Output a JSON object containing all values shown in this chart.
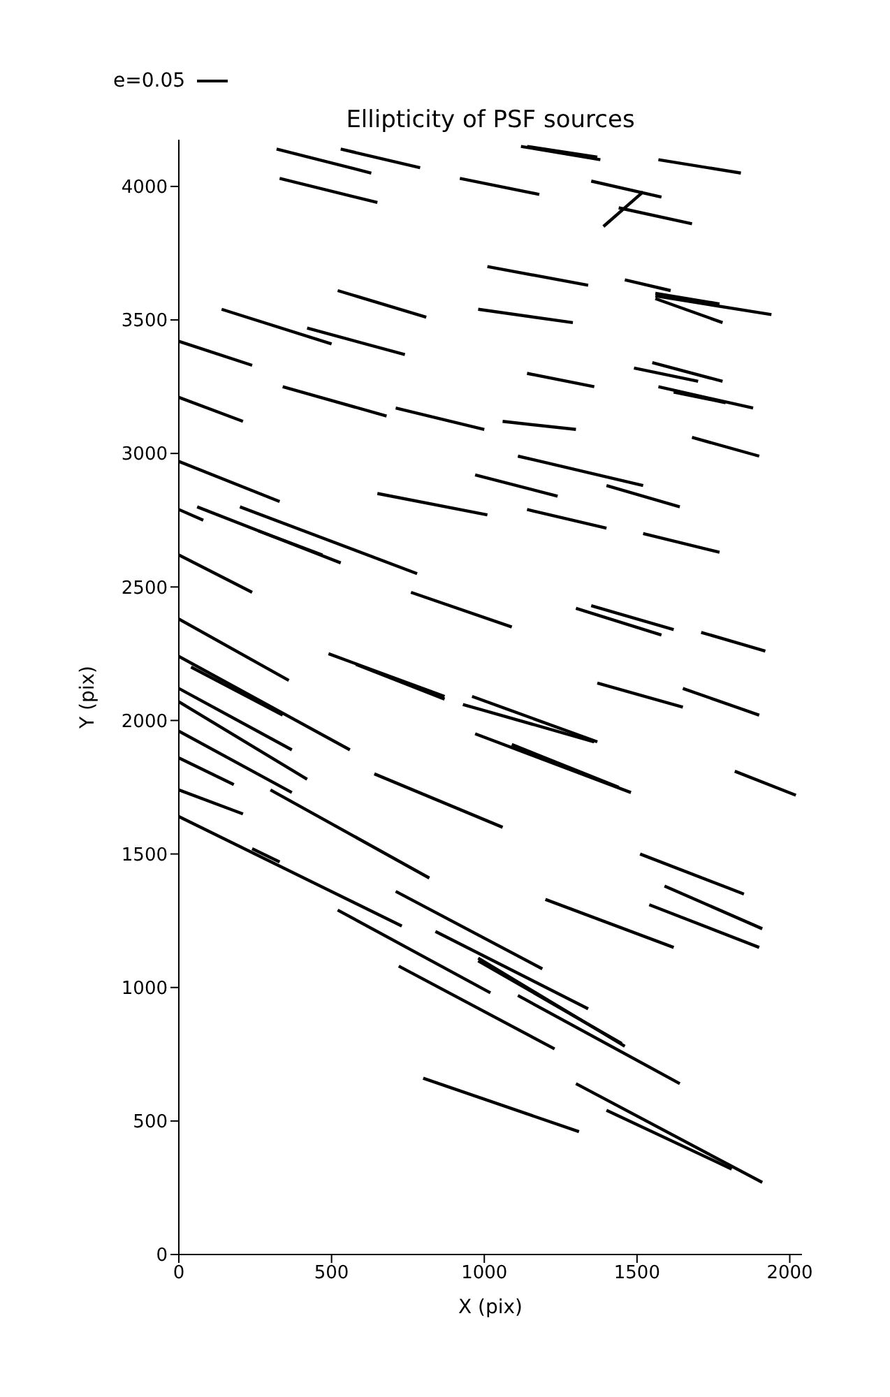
{
  "chart_data": {
    "type": "line",
    "title": "Ellipticity of PSF sources",
    "xlabel": "X (pix)",
    "ylabel": "Y (pix)",
    "annotations": [
      "e=0.05"
    ],
    "xlim": [
      0,
      2040
    ],
    "ylim": [
      0,
      4175
    ],
    "xticks": [
      0,
      500,
      1000,
      1500,
      2000
    ],
    "yticks": [
      0,
      500,
      1000,
      1500,
      2000,
      2500,
      3000,
      3500,
      4000
    ],
    "marker": "none",
    "line_style": "solid",
    "series": [
      {
        "color": "#000000",
        "x": [
          320,
          630
        ],
        "values": [
          4140,
          4050
        ]
      },
      {
        "color": "#000000",
        "x": [
          530,
          790
        ],
        "values": [
          4140,
          4070
        ]
      },
      {
        "color": "#000000",
        "x": [
          330,
          650
        ],
        "values": [
          4030,
          3940
        ]
      },
      {
        "color": "#000000",
        "x": [
          920,
          1180
        ],
        "values": [
          4030,
          3970
        ]
      },
      {
        "color": "#000000",
        "x": [
          1120,
          1380
        ],
        "values": [
          4150,
          4100
        ]
      },
      {
        "color": "#000000",
        "x": [
          1140,
          1370
        ],
        "values": [
          4150,
          4110
        ]
      },
      {
        "color": "#000000",
        "x": [
          1570,
          1840
        ],
        "values": [
          4100,
          4050
        ]
      },
      {
        "color": "#000000",
        "x": [
          1350,
          1580
        ],
        "values": [
          4020,
          3960
        ]
      },
      {
        "color": "#000000",
        "x": [
          1390,
          1520
        ],
        "values": [
          3850,
          3980
        ]
      },
      {
        "color": "#000000",
        "x": [
          1440,
          1680
        ],
        "values": [
          3920,
          3860
        ]
      },
      {
        "color": "#000000",
        "x": [
          1010,
          1340
        ],
        "values": [
          3700,
          3630
        ]
      },
      {
        "color": "#000000",
        "x": [
          1460,
          1610
        ],
        "values": [
          3650,
          3610
        ]
      },
      {
        "color": "#000000",
        "x": [
          1560,
          1770
        ],
        "values": [
          3600,
          3560
        ]
      },
      {
        "color": "#000000",
        "x": [
          1560,
          1940
        ],
        "values": [
          3590,
          3520
        ]
      },
      {
        "color": "#000000",
        "x": [
          1560,
          1780
        ],
        "values": [
          3580,
          3490
        ]
      },
      {
        "color": "#000000",
        "x": [
          520,
          810
        ],
        "values": [
          3610,
          3510
        ]
      },
      {
        "color": "#000000",
        "x": [
          980,
          1290
        ],
        "values": [
          3540,
          3490
        ]
      },
      {
        "color": "#000000",
        "x": [
          140,
          500
        ],
        "values": [
          3540,
          3410
        ]
      },
      {
        "color": "#000000",
        "x": [
          420,
          740
        ],
        "values": [
          3470,
          3370
        ]
      },
      {
        "color": "#000000",
        "x": [
          0,
          240
        ],
        "values": [
          3420,
          3330
        ]
      },
      {
        "color": "#000000",
        "x": [
          1140,
          1360
        ],
        "values": [
          3300,
          3250
        ]
      },
      {
        "color": "#000000",
        "x": [
          1490,
          1700
        ],
        "values": [
          3320,
          3270
        ]
      },
      {
        "color": "#000000",
        "x": [
          1550,
          1780
        ],
        "values": [
          3340,
          3270
        ]
      },
      {
        "color": "#000000",
        "x": [
          1570,
          1880
        ],
        "values": [
          3250,
          3170
        ]
      },
      {
        "color": "#000000",
        "x": [
          1620,
          1790
        ],
        "values": [
          3230,
          3190
        ]
      },
      {
        "color": "#000000",
        "x": [
          340,
          680
        ],
        "values": [
          3250,
          3140
        ]
      },
      {
        "color": "#000000",
        "x": [
          0,
          210
        ],
        "values": [
          3210,
          3120
        ]
      },
      {
        "color": "#000000",
        "x": [
          710,
          1000
        ],
        "values": [
          3170,
          3090
        ]
      },
      {
        "color": "#000000",
        "x": [
          1060,
          1300
        ],
        "values": [
          3120,
          3090
        ]
      },
      {
        "color": "#000000",
        "x": [
          1680,
          1900
        ],
        "values": [
          3060,
          2990
        ]
      },
      {
        "color": "#000000",
        "x": [
          0,
          330
        ],
        "values": [
          2970,
          2820
        ]
      },
      {
        "color": "#000000",
        "x": [
          1110,
          1520
        ],
        "values": [
          2990,
          2880
        ]
      },
      {
        "color": "#000000",
        "x": [
          970,
          1240
        ],
        "values": [
          2920,
          2840
        ]
      },
      {
        "color": "#000000",
        "x": [
          1400,
          1640
        ],
        "values": [
          2880,
          2800
        ]
      },
      {
        "color": "#000000",
        "x": [
          650,
          1010
        ],
        "values": [
          2850,
          2770
        ]
      },
      {
        "color": "#000000",
        "x": [
          1140,
          1400
        ],
        "values": [
          2790,
          2720
        ]
      },
      {
        "color": "#000000",
        "x": [
          1520,
          1770
        ],
        "values": [
          2700,
          2630
        ]
      },
      {
        "color": "#000000",
        "x": [
          0,
          80
        ],
        "values": [
          2790,
          2750
        ]
      },
      {
        "color": "#000000",
        "x": [
          60,
          530
        ],
        "values": [
          2800,
          2590
        ]
      },
      {
        "color": "#000000",
        "x": [
          200,
          780
        ],
        "values": [
          2800,
          2550
        ]
      },
      {
        "color": "#000000",
        "x": [
          260,
          470
        ],
        "values": [
          2710,
          2620
        ]
      },
      {
        "color": "#000000",
        "x": [
          0,
          240
        ],
        "values": [
          2620,
          2480
        ]
      },
      {
        "color": "#000000",
        "x": [
          760,
          1090
        ],
        "values": [
          2480,
          2350
        ]
      },
      {
        "color": "#000000",
        "x": [
          1300,
          1580
        ],
        "values": [
          2420,
          2320
        ]
      },
      {
        "color": "#000000",
        "x": [
          1350,
          1620
        ],
        "values": [
          2430,
          2340
        ]
      },
      {
        "color": "#000000",
        "x": [
          1710,
          1920
        ],
        "values": [
          2330,
          2260
        ]
      },
      {
        "color": "#000000",
        "x": [
          0,
          360
        ],
        "values": [
          2380,
          2150
        ]
      },
      {
        "color": "#000000",
        "x": [
          490,
          870
        ],
        "values": [
          2250,
          2090
        ]
      },
      {
        "color": "#000000",
        "x": [
          580,
          870
        ],
        "values": [
          2210,
          2080
        ]
      },
      {
        "color": "#000000",
        "x": [
          1370,
          1650
        ],
        "values": [
          2140,
          2050
        ]
      },
      {
        "color": "#000000",
        "x": [
          1650,
          1900
        ],
        "values": [
          2120,
          2020
        ]
      },
      {
        "color": "#000000",
        "x": [
          960,
          1370
        ],
        "values": [
          2090,
          1920
        ]
      },
      {
        "color": "#000000",
        "x": [
          930,
          1360
        ],
        "values": [
          2060,
          1920
        ]
      },
      {
        "color": "#000000",
        "x": [
          970,
          1480
        ],
        "values": [
          1950,
          1730
        ]
      },
      {
        "color": "#000000",
        "x": [
          1090,
          1440
        ],
        "values": [
          1910,
          1750
        ]
      },
      {
        "color": "#000000",
        "x": [
          1820,
          2020
        ],
        "values": [
          1810,
          1720
        ]
      },
      {
        "color": "#000000",
        "x": [
          640,
          1060
        ],
        "values": [
          1800,
          1600
        ]
      },
      {
        "color": "#000000",
        "x": [
          0,
          560
        ],
        "values": [
          2240,
          1890
        ]
      },
      {
        "color": "#000000",
        "x": [
          40,
          340
        ],
        "values": [
          2200,
          2020
        ]
      },
      {
        "color": "#000000",
        "x": [
          0,
          370
        ],
        "values": [
          2120,
          1890
        ]
      },
      {
        "color": "#000000",
        "x": [
          0,
          420
        ],
        "values": [
          2070,
          1780
        ]
      },
      {
        "color": "#000000",
        "x": [
          0,
          370
        ],
        "values": [
          1960,
          1730
        ]
      },
      {
        "color": "#000000",
        "x": [
          0,
          180
        ],
        "values": [
          1860,
          1760
        ]
      },
      {
        "color": "#000000",
        "x": [
          0,
          210
        ],
        "values": [
          1740,
          1650
        ]
      },
      {
        "color": "#000000",
        "x": [
          0,
          730
        ],
        "values": [
          1640,
          1230
        ]
      },
      {
        "color": "#000000",
        "x": [
          240,
          330
        ],
        "values": [
          1520,
          1470
        ]
      },
      {
        "color": "#000000",
        "x": [
          300,
          820
        ],
        "values": [
          1740,
          1410
        ]
      },
      {
        "color": "#000000",
        "x": [
          710,
          1190
        ],
        "values": [
          1360,
          1070
        ]
      },
      {
        "color": "#000000",
        "x": [
          520,
          1020
        ],
        "values": [
          1290,
          980
        ]
      },
      {
        "color": "#000000",
        "x": [
          720,
          1230
        ],
        "values": [
          1080,
          770
        ]
      },
      {
        "color": "#000000",
        "x": [
          840,
          1340
        ],
        "values": [
          1210,
          920
        ]
      },
      {
        "color": "#000000",
        "x": [
          980,
          1460
        ],
        "values": [
          1110,
          780
        ]
      },
      {
        "color": "#000000",
        "x": [
          980,
          1450
        ],
        "values": [
          1100,
          790
        ]
      },
      {
        "color": "#000000",
        "x": [
          1110,
          1640
        ],
        "values": [
          970,
          640
        ]
      },
      {
        "color": "#000000",
        "x": [
          1200,
          1620
        ],
        "values": [
          1330,
          1150
        ]
      },
      {
        "color": "#000000",
        "x": [
          1510,
          1850
        ],
        "values": [
          1500,
          1350
        ]
      },
      {
        "color": "#000000",
        "x": [
          1590,
          1910
        ],
        "values": [
          1380,
          1220
        ]
      },
      {
        "color": "#000000",
        "x": [
          1540,
          1900
        ],
        "values": [
          1310,
          1150
        ]
      },
      {
        "color": "#000000",
        "x": [
          800,
          1310
        ],
        "values": [
          660,
          460
        ]
      },
      {
        "color": "#000000",
        "x": [
          1300,
          1910
        ],
        "values": [
          640,
          270
        ]
      },
      {
        "color": "#000000",
        "x": [
          1400,
          1810
        ],
        "values": [
          540,
          320
        ]
      }
    ]
  }
}
